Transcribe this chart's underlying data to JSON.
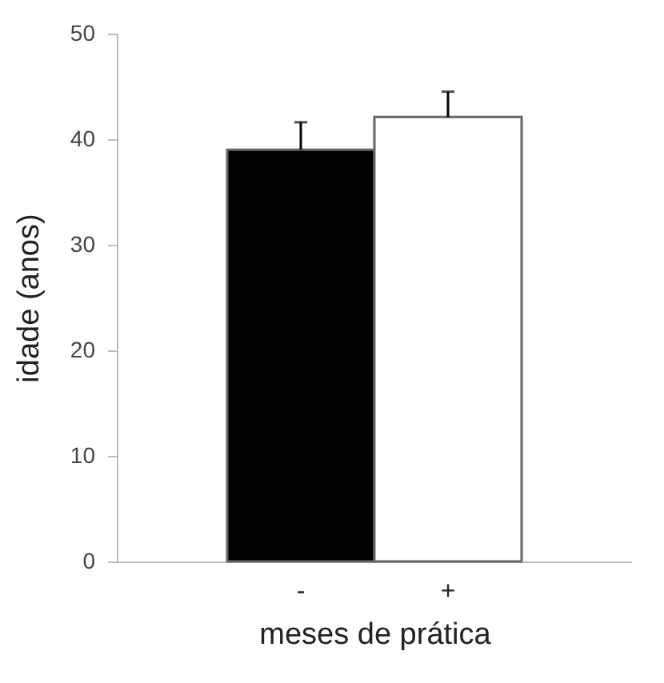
{
  "chart_data": {
    "type": "bar",
    "xlabel": "meses de prática",
    "ylabel": "idade (anos)",
    "categories": [
      "-",
      "+"
    ],
    "values": [
      39.0,
      42.1
    ],
    "colors": [
      "#000000",
      "#ffffff"
    ],
    "errors": [
      [
        39.0,
        41.6
      ],
      [
        42.1,
        44.5
      ]
    ],
    "ylim": [
      0,
      50
    ],
    "yticks": [
      0,
      10,
      20,
      30,
      40,
      50
    ],
    "grid": false
  }
}
